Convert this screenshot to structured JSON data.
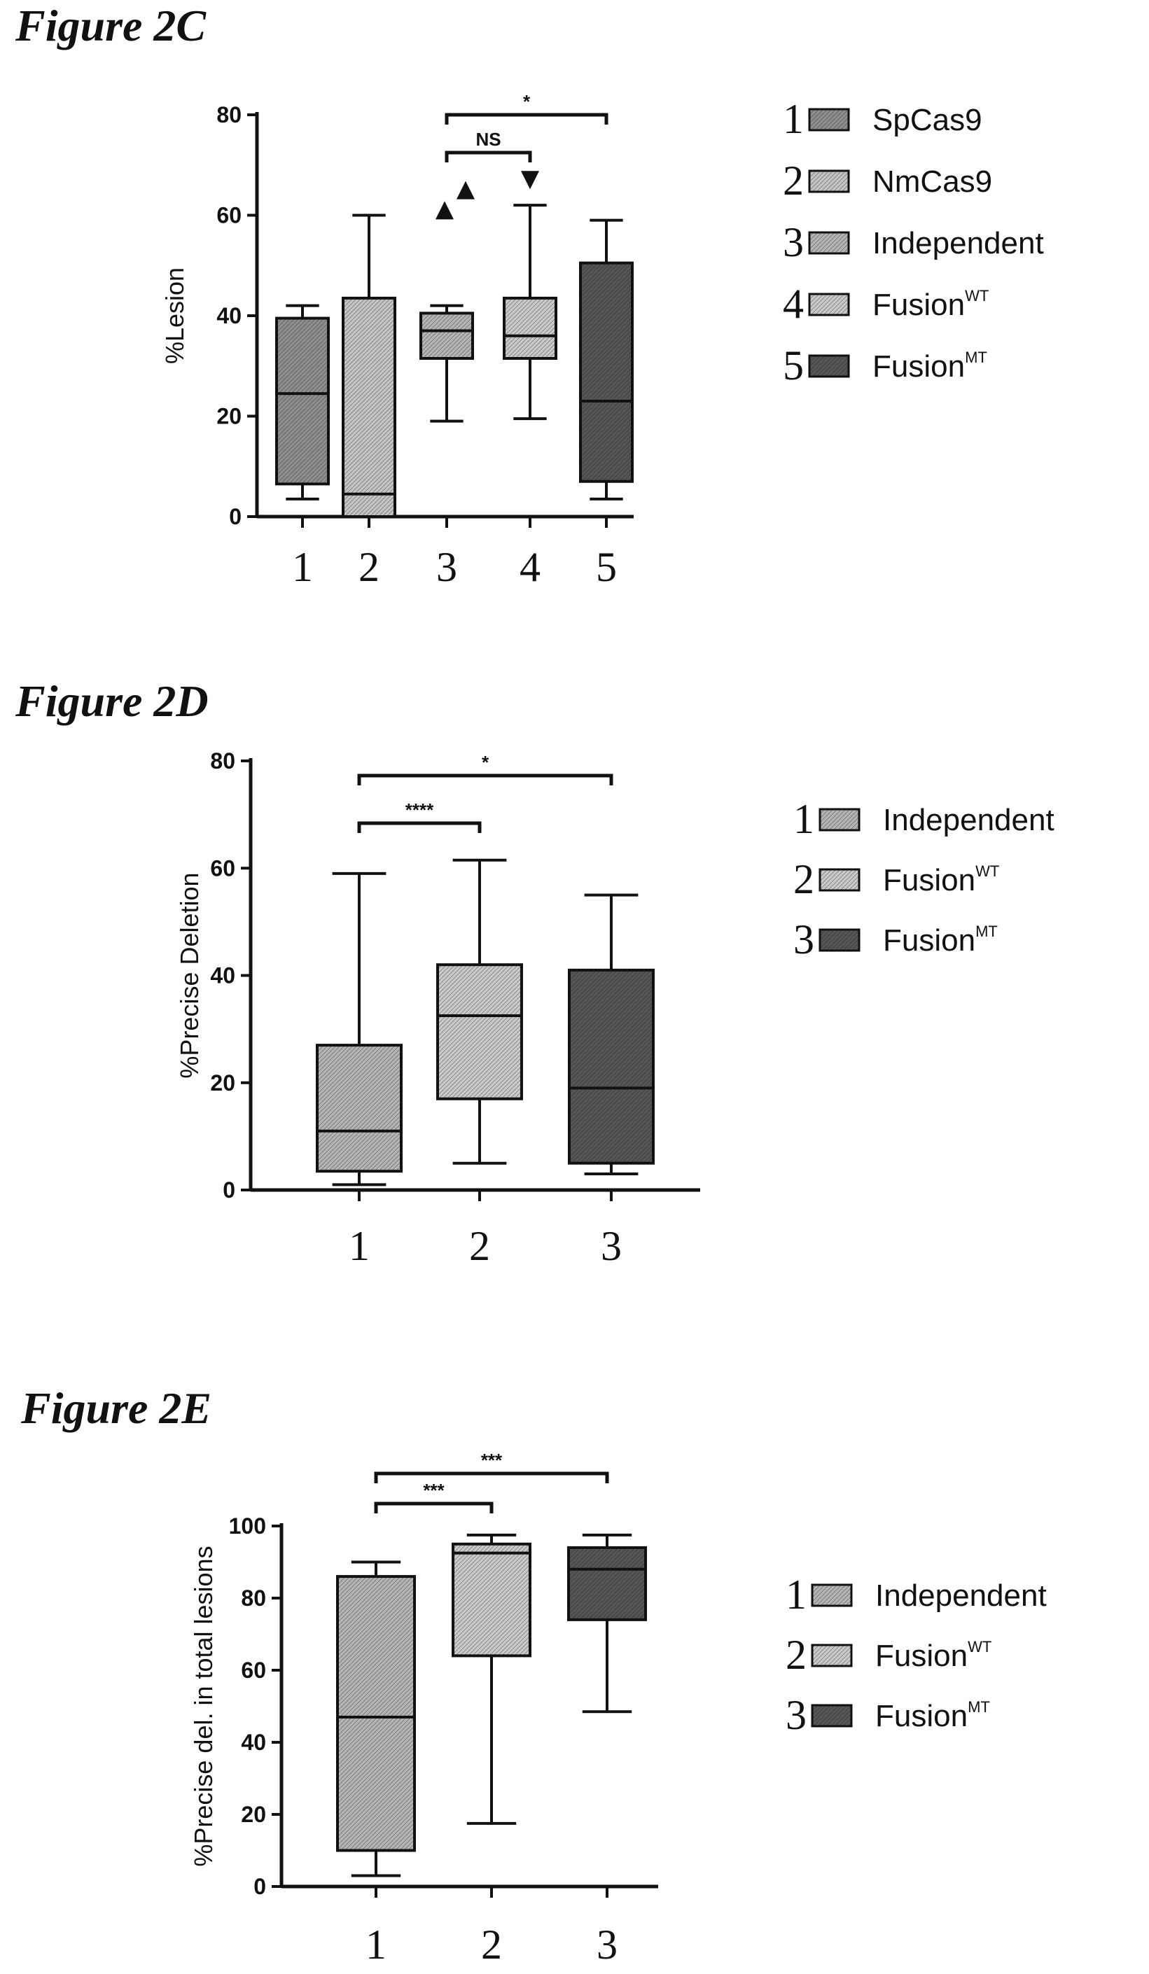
{
  "chart_data": [
    {
      "id": "2C",
      "title": "Figure 2C",
      "type": "box",
      "ylabel": "%Lesion",
      "ylim": [
        0,
        80
      ],
      "yticks": [
        0,
        20,
        40,
        60,
        80
      ],
      "categories": [
        "1",
        "2",
        "3",
        "4",
        "5"
      ],
      "boxes": [
        {
          "min": 3.5,
          "q1": 6.5,
          "median": 24.5,
          "q3": 39.5,
          "max": 42,
          "fill": "#8e8e8e"
        },
        {
          "min": 0,
          "q1": 0,
          "median": 4.5,
          "q3": 43.5,
          "max": 60,
          "fill": "#c4c4c4"
        },
        {
          "min": 19,
          "q1": 31.5,
          "median": 37,
          "q3": 40.5,
          "max": 42,
          "fill": "#b4b4b4"
        },
        {
          "min": 19.5,
          "q1": 31.5,
          "median": 36,
          "q3": 43.5,
          "max": 62,
          "fill": "#c9c9c9"
        },
        {
          "min": 3.5,
          "q1": 7,
          "median": 23,
          "q3": 50.5,
          "max": 59,
          "fill": "#555555"
        }
      ],
      "outliers": [
        {
          "category": "3",
          "value": 61,
          "marker": "triangle-up"
        },
        {
          "category": "3",
          "value": 65,
          "marker": "triangle-up"
        },
        {
          "category": "4",
          "value": 67,
          "marker": "triangle-down"
        }
      ],
      "significance": [
        {
          "from": "3",
          "to": "5",
          "label": "*"
        },
        {
          "from": "3",
          "to": "4",
          "label": "NS"
        }
      ],
      "legend": [
        {
          "num": "1",
          "label": "SpCas9",
          "sup": "",
          "fill": "#8e8e8e"
        },
        {
          "num": "2",
          "label": "NmCas9",
          "sup": "",
          "fill": "#c4c4c4"
        },
        {
          "num": "3",
          "label": "Independent",
          "sup": "",
          "fill": "#b4b4b4"
        },
        {
          "num": "4",
          "label": "Fusion",
          "sup": "WT",
          "fill": "#c9c9c9"
        },
        {
          "num": "5",
          "label": "Fusion",
          "sup": "MT",
          "fill": "#555555"
        }
      ]
    },
    {
      "id": "2D",
      "title": "Figure 2D",
      "type": "box",
      "ylabel": "%Precise Deletion",
      "ylim": [
        0,
        80
      ],
      "yticks": [
        0,
        20,
        40,
        60,
        80
      ],
      "categories": [
        "1",
        "2",
        "3"
      ],
      "boxes": [
        {
          "min": 1,
          "q1": 3.5,
          "median": 11,
          "q3": 27,
          "max": 59,
          "fill": "#b4b4b4"
        },
        {
          "min": 5,
          "q1": 17,
          "median": 32.5,
          "q3": 42,
          "max": 61.5,
          "fill": "#c9c9c9"
        },
        {
          "min": 3,
          "q1": 5,
          "median": 19,
          "q3": 41,
          "max": 55,
          "fill": "#555555"
        }
      ],
      "outliers": [],
      "significance": [
        {
          "from": "1",
          "to": "3",
          "label": "*"
        },
        {
          "from": "1",
          "to": "2",
          "label": "****"
        }
      ],
      "legend": [
        {
          "num": "1",
          "label": "Independent",
          "sup": "",
          "fill": "#b4b4b4"
        },
        {
          "num": "2",
          "label": "Fusion",
          "sup": "WT",
          "fill": "#c9c9c9"
        },
        {
          "num": "3",
          "label": "Fusion",
          "sup": "MT",
          "fill": "#555555"
        }
      ]
    },
    {
      "id": "2E",
      "title": "Figure 2E",
      "type": "box",
      "ylabel": "%Precise del. in total lesions",
      "ylim": [
        0,
        100
      ],
      "yticks": [
        0,
        20,
        40,
        60,
        80,
        100
      ],
      "categories": [
        "1",
        "2",
        "3"
      ],
      "boxes": [
        {
          "min": 3,
          "q1": 10,
          "median": 47,
          "q3": 86,
          "max": 90,
          "fill": "#b4b4b4"
        },
        {
          "min": 17.5,
          "q1": 64,
          "median": 92.5,
          "q3": 95,
          "max": 97.5,
          "fill": "#c9c9c9"
        },
        {
          "min": 48.5,
          "q1": 74,
          "median": 88,
          "q3": 94,
          "max": 97.5,
          "fill": "#555555"
        }
      ],
      "outliers": [],
      "significance": [
        {
          "from": "1",
          "to": "3",
          "label": "***"
        },
        {
          "from": "1",
          "to": "2",
          "label": "***"
        }
      ],
      "legend": [
        {
          "num": "1",
          "label": "Independent",
          "sup": "",
          "fill": "#b4b4b4"
        },
        {
          "num": "2",
          "label": "Fusion",
          "sup": "WT",
          "fill": "#c9c9c9"
        },
        {
          "num": "3",
          "label": "Fusion",
          "sup": "MT",
          "fill": "#555555"
        }
      ]
    }
  ]
}
